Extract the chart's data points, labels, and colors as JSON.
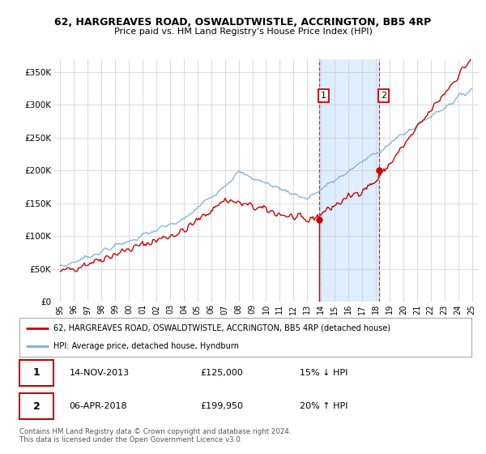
{
  "title1": "62, HARGREAVES ROAD, OSWALDTWISTLE, ACCRINGTON, BB5 4RP",
  "title2": "Price paid vs. HM Land Registry's House Price Index (HPI)",
  "ylabel_ticks": [
    "£0",
    "£50K",
    "£100K",
    "£150K",
    "£200K",
    "£250K",
    "£300K",
    "£350K"
  ],
  "ytick_vals": [
    0,
    50000,
    100000,
    150000,
    200000,
    250000,
    300000,
    350000
  ],
  "ylim": [
    0,
    370000
  ],
  "sale1_date": "14-NOV-2013",
  "sale1_price": 125000,
  "sale1_pct": "15% ↓ HPI",
  "sale2_date": "06-APR-2018",
  "sale2_price": 199950,
  "sale2_pct": "20% ↑ HPI",
  "legend_line1": "62, HARGREAVES ROAD, OSWALDTWISTLE, ACCRINGTON, BB5 4RP (detached house)",
  "legend_line2": "HPI: Average price, detached house, Hyndburn",
  "footer": "Contains HM Land Registry data © Crown copyright and database right 2024.\nThis data is licensed under the Open Government Licence v3.0.",
  "sale1_x": 2013.87,
  "sale2_x": 2018.26,
  "hpi_color": "#7aadd4",
  "price_color": "#cc0000",
  "shade_color": "#ddeeff",
  "grid_color": "#cccccc",
  "bg_color": "#ffffff"
}
